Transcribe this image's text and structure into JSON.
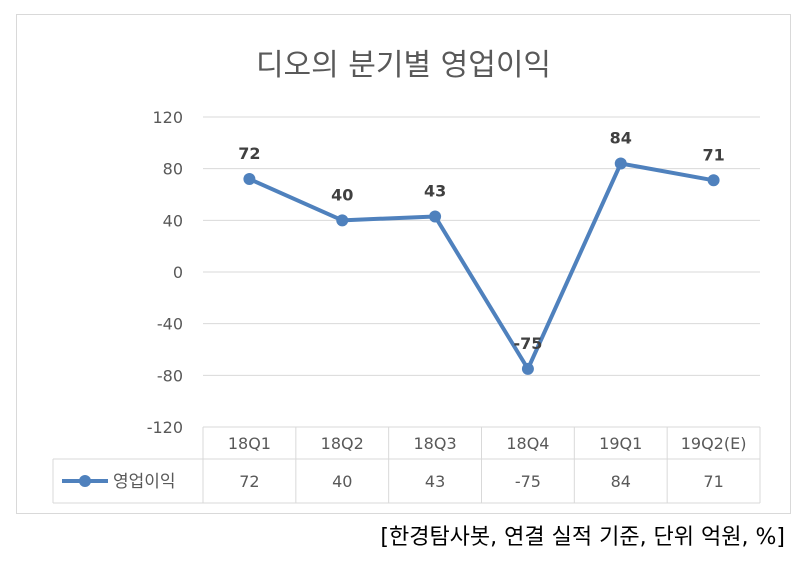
{
  "chart_data": {
    "type": "line",
    "title": "디오의 분기별 영업이익",
    "categories": [
      "18Q1",
      "18Q2",
      "18Q3",
      "18Q4",
      "19Q1",
      "19Q2(E)"
    ],
    "series": [
      {
        "name": "영업이익",
        "values": [
          72,
          40,
          43,
          -75,
          84,
          71
        ]
      }
    ],
    "ylim": [
      -120,
      120
    ],
    "yticks": [
      "120",
      "80",
      "40",
      "0",
      "-40",
      "-80",
      "-120"
    ],
    "data_labels": [
      "72",
      "40",
      "43",
      "-75",
      "84",
      "71"
    ],
    "grid": true,
    "legend": "data-table",
    "xlabel": "",
    "ylabel": ""
  },
  "source_note": "[한경탐사봇, 연결 실적 기준, 단위 억원, %]",
  "colors": {
    "series": "#4f81bd",
    "grid": "#d9d9d9",
    "axis_text": "#595959",
    "title": "#595959"
  }
}
